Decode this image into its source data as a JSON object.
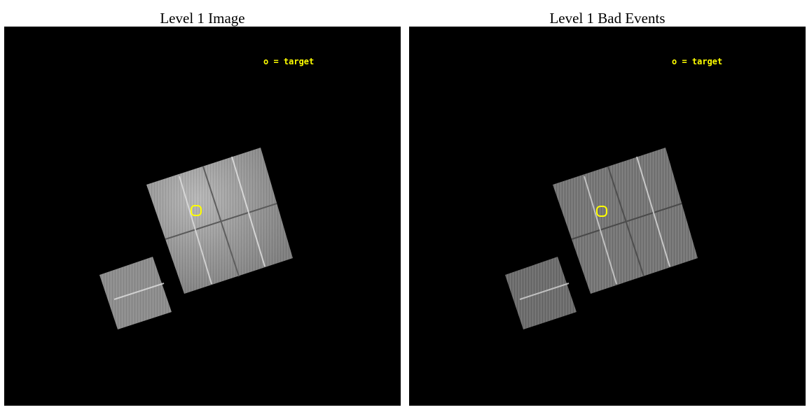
{
  "panels": [
    {
      "title": "Level 1 Image",
      "legend_text": "o = target",
      "target_marker_color": "#ffff00",
      "chip_tone": "bright"
    },
    {
      "title": "Level 1 Bad Events",
      "legend_text": "o = target",
      "target_marker_color": "#ffff00",
      "chip_tone": "dim"
    }
  ],
  "colors": {
    "background": "#000000",
    "marker": "#ffff00"
  }
}
